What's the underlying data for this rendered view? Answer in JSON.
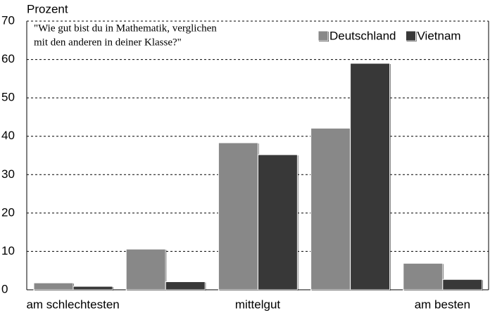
{
  "chart_data": {
    "type": "bar",
    "y_label": "Prozent",
    "annotation": [
      "\"Wie gut bist du in Mathematik, verglichen",
      "mit den anderen in deiner Klasse?\""
    ],
    "categories": [
      "am schlechtesten",
      null,
      "mittelgut",
      null,
      "am besten"
    ],
    "series": [
      {
        "name": "Deutschland",
        "color": "#888888",
        "values": [
          1.8,
          10.6,
          38.3,
          42.1,
          6.9
        ]
      },
      {
        "name": "Vietnam",
        "color": "#383838",
        "values": [
          0.9,
          2.1,
          35.2,
          59,
          2.7
        ]
      }
    ],
    "ylim": [
      0,
      70
    ],
    "yticks": [
      0,
      10,
      20,
      30,
      40,
      50,
      60,
      70
    ],
    "grid": true,
    "legend": "top-right"
  }
}
